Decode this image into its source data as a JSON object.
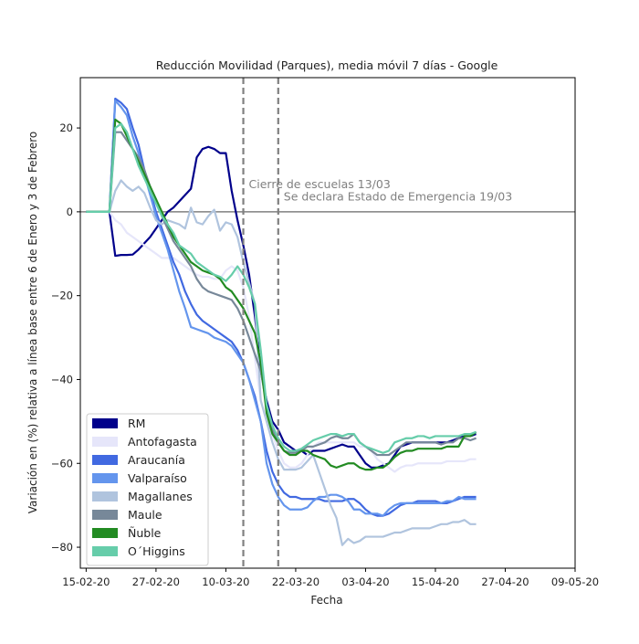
{
  "chart_data": {
    "type": "line",
    "title": "Reducción Movilidad (Parques), media móvil 7 días - Google",
    "xlabel": "Fecha",
    "ylabel": "Variación en (%) relativa a línea base entre 6 de Enero y 3 de Febrero",
    "x_start": "2020-02-15",
    "xlim": [
      "2020-02-14",
      "2020-05-09"
    ],
    "ylim": [
      -85,
      32
    ],
    "x_ticks": [
      {
        "date": "2020-02-15",
        "label": "15-02-20"
      },
      {
        "date": "2020-02-27",
        "label": "27-02-20"
      },
      {
        "date": "2020-03-10",
        "label": "10-03-20"
      },
      {
        "date": "2020-03-22",
        "label": "22-03-20"
      },
      {
        "date": "2020-04-03",
        "label": "03-04-20"
      },
      {
        "date": "2020-04-15",
        "label": "15-04-20"
      },
      {
        "date": "2020-04-27",
        "label": "27-04-20"
      },
      {
        "date": "2020-05-09",
        "label": "09-05-20"
      }
    ],
    "y_ticks": [
      20,
      0,
      -20,
      -40,
      -60,
      -80
    ],
    "grid": false,
    "legend_position": "lower-left",
    "hlines": [
      {
        "y": 0,
        "color": "#808080"
      }
    ],
    "vlines": [
      {
        "date": "2020-03-13",
        "color": "#808080",
        "style": "dashed"
      },
      {
        "date": "2020-03-19",
        "color": "#808080",
        "style": "dashed"
      }
    ],
    "annotations": [
      {
        "text": "Cierre de escuelas 13/03",
        "date": "2020-03-13",
        "y": 5
      },
      {
        "text": "Se declara Estado de Emergencia 19/03",
        "date": "2020-03-19",
        "y": 2
      }
    ],
    "series": [
      {
        "name": "RM",
        "color": "#00008B",
        "values": [
          0,
          0,
          0,
          0,
          0,
          -10.5,
          -10.3,
          -10.3,
          -10.2,
          -9,
          -7.5,
          -6,
          -4,
          -2,
          0,
          1,
          2.5,
          4,
          5.5,
          13,
          15,
          15.5,
          15,
          14,
          14,
          5,
          -2,
          -8,
          -15,
          -25,
          -38,
          -45,
          -50,
          -52,
          -55,
          -56,
          -57,
          -57,
          -58,
          -57,
          -57,
          -57,
          -56.5,
          -56,
          -55.5,
          -56,
          -56,
          -58,
          -60,
          -61,
          -61,
          -60.5,
          -60,
          -58,
          -56,
          -55.5,
          -55,
          -55,
          -55,
          -55,
          -55,
          -55,
          -55,
          -54.5,
          -54,
          -53.5,
          -53.5,
          -53
        ]
      },
      {
        "name": "Antofagasta",
        "color": "#E6E6FA",
        "values": [
          0,
          0,
          0,
          0,
          0,
          -2,
          -3,
          -5,
          -6,
          -7,
          -8,
          -9,
          -10,
          -11,
          -11,
          -11,
          -12,
          -13,
          -14,
          -15,
          -15.5,
          -15.5,
          -16,
          -16,
          -14,
          -13,
          -14,
          -18,
          -25,
          -35,
          -45,
          -50,
          -53,
          -57,
          -60,
          -61,
          -61,
          -60,
          -58,
          -56,
          -55,
          -55,
          -55,
          -55,
          -55,
          -55,
          -55,
          -56,
          -56,
          -57,
          -59,
          -60,
          -61,
          -62,
          -61,
          -60.5,
          -60.5,
          -60,
          -60,
          -60,
          -60,
          -60,
          -59.5,
          -59.5,
          -59.5,
          -59.5,
          -59,
          -59
        ]
      },
      {
        "name": "Araucanía",
        "color": "#4169E1",
        "values": [
          0,
          0,
          0,
          0,
          0,
          27,
          26,
          24.5,
          20,
          16,
          10,
          5,
          0,
          -4,
          -8,
          -12,
          -15,
          -19,
          -22,
          -24.5,
          -26,
          -27,
          -28,
          -29,
          -30,
          -31,
          -33,
          -36,
          -40,
          -44,
          -50,
          -57,
          -62,
          -65,
          -67,
          -68,
          -68,
          -68.5,
          -68.5,
          -68.5,
          -68.5,
          -69,
          -69,
          -69,
          -69,
          -68.5,
          -68.5,
          -69.5,
          -71,
          -72,
          -72.5,
          -72.5,
          -72,
          -71,
          -70,
          -69.5,
          -69.5,
          -69,
          -69,
          -69,
          -69,
          -69.5,
          -69.5,
          -69,
          -68.5,
          -68,
          -68,
          -68
        ]
      },
      {
        "name": "Valparaíso",
        "color": "#6495ED",
        "values": [
          0,
          0,
          0,
          0,
          0,
          26.5,
          25,
          23,
          18,
          14,
          9,
          4,
          -1,
          -5,
          -9,
          -14,
          -19,
          -23,
          -27.5,
          -28,
          -28.5,
          -29,
          -30,
          -30.5,
          -31,
          -32,
          -34,
          -36,
          -40,
          -45,
          -50,
          -60,
          -65,
          -68,
          -70,
          -71,
          -71,
          -71,
          -70.5,
          -69,
          -68,
          -68,
          -67.5,
          -67.5,
          -68,
          -69,
          -71,
          -71,
          -72,
          -72,
          -72,
          -72.5,
          -71,
          -70,
          -69.5,
          -69.5,
          -69.5,
          -69.5,
          -69.5,
          -69.5,
          -69.5,
          -69.5,
          -69,
          -69,
          -68,
          -68.5,
          -68.5,
          -68.5
        ]
      },
      {
        "name": "Magallanes",
        "color": "#B0C4DE",
        "values": [
          0,
          0,
          0,
          0,
          0,
          5,
          7.5,
          6,
          5,
          6,
          4.5,
          1,
          -2,
          -3,
          -2,
          -2.5,
          -3,
          -4,
          1,
          -2.5,
          -3,
          -1,
          0.5,
          -4.5,
          -2.5,
          -3,
          -6,
          -12,
          -17,
          -22,
          -45,
          -50,
          -55,
          -59,
          -61.5,
          -61.5,
          -61.5,
          -61,
          -59.5,
          -58,
          -62,
          -66,
          -70,
          -73,
          -79.5,
          -78,
          -79,
          -78.5,
          -77.5,
          -77.5,
          -77.5,
          -77.5,
          -77,
          -76.5,
          -76.5,
          -76,
          -75.5,
          -75.5,
          -75.5,
          -75.5,
          -75,
          -74.5,
          -74.5,
          -74,
          -74,
          -73.5,
          -74.5,
          -74.5
        ]
      },
      {
        "name": "Maule",
        "color": "#778899",
        "values": [
          0,
          0,
          0,
          0,
          0,
          19,
          19,
          17,
          15,
          13,
          10,
          6,
          3,
          -1,
          -4,
          -7,
          -9,
          -11,
          -13,
          -16,
          -18,
          -19,
          -19.5,
          -20,
          -20.5,
          -21,
          -23,
          -26,
          -30,
          -34,
          -38,
          -46,
          -52,
          -55,
          -57,
          -57.5,
          -57.5,
          -57,
          -56,
          -56,
          -55.5,
          -55,
          -54,
          -53.5,
          -54,
          -54,
          -53,
          -55,
          -56,
          -57,
          -58,
          -58,
          -58,
          -57,
          -56,
          -55,
          -55,
          -55,
          -55,
          -55,
          -55,
          -55.5,
          -55,
          -55,
          -54,
          -54,
          -54.5,
          -54
        ]
      },
      {
        "name": "Ñuble",
        "color": "#228B22",
        "values": [
          0,
          0,
          0,
          0,
          0,
          22,
          21,
          18,
          15,
          12,
          9,
          6,
          3,
          0,
          -3,
          -6,
          -8,
          -10,
          -12,
          -13,
          -14,
          -14.5,
          -15,
          -16,
          -18,
          -19,
          -21,
          -23,
          -26,
          -29,
          -36,
          -48,
          -53,
          -55,
          -57,
          -58,
          -58,
          -57,
          -57,
          -58,
          -58.5,
          -59,
          -60.5,
          -61,
          -60.5,
          -60,
          -60,
          -61,
          -61.5,
          -61.5,
          -61,
          -61,
          -60,
          -58.5,
          -57.5,
          -57,
          -57,
          -56.5,
          -56.5,
          -56.5,
          -56.5,
          -56.5,
          -56,
          -56,
          -56,
          -53.5,
          -53.5,
          -52.5
        ]
      },
      {
        "name": "O´Higgins",
        "color": "#66CDAA",
        "values": [
          0,
          0,
          0,
          0,
          0,
          20,
          21,
          19,
          15,
          11,
          8,
          5,
          2,
          -1,
          -3,
          -5,
          -8,
          -9,
          -10,
          -12,
          -13,
          -14,
          -15,
          -15.5,
          -16.5,
          -15,
          -13,
          -15,
          -18,
          -22,
          -33,
          -46,
          -51,
          -54,
          -56,
          -57,
          -57,
          -56.5,
          -55.5,
          -54.5,
          -54,
          -53.5,
          -53,
          -53,
          -53.5,
          -53,
          -53,
          -55,
          -56,
          -56.5,
          -57,
          -57.5,
          -57,
          -55,
          -54.5,
          -54,
          -54,
          -53.5,
          -53.5,
          -54,
          -53.5,
          -53.5,
          -53.5,
          -53.5,
          -53.5,
          -53,
          -53,
          -52.5
        ]
      }
    ]
  }
}
